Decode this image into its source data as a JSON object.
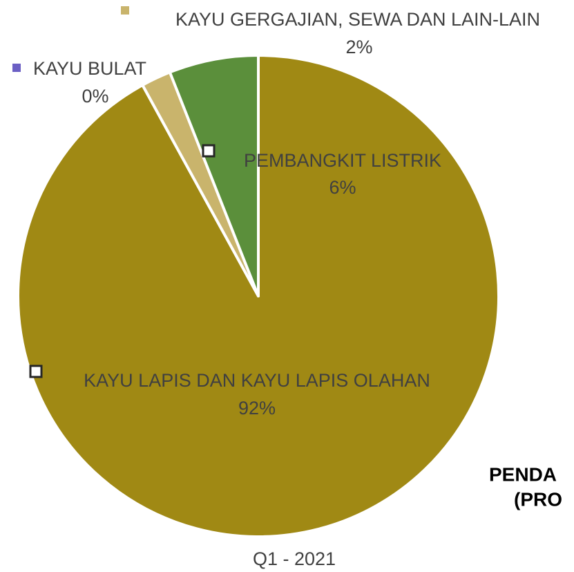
{
  "chart_data": {
    "type": "pie",
    "title": "PENDA",
    "subtitle": "(PRO",
    "footer": "Q1 - 2021",
    "categories": [
      "KAYU LAPIS DAN KAYU LAPIS OLAHAN",
      "KAYU BULAT",
      "KAYU GERGAJIAN, SEWA DAN LAIN-LAIN",
      "PEMBANGKIT LISTRIK"
    ],
    "values": [
      92,
      0,
      2,
      6
    ],
    "value_labels": [
      "92%",
      "0%",
      "2%",
      "6%"
    ],
    "colors": [
      "#a08914",
      "#6b5fc4",
      "#c9b46c",
      "#5b8f3b"
    ]
  }
}
